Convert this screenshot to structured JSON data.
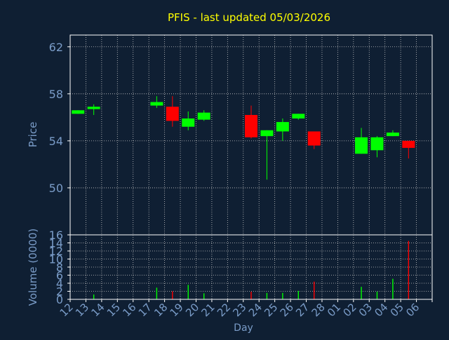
{
  "title": "PFIS - last updated 05/03/2026",
  "colors": {
    "background": "#0f1f33",
    "frame": "#ffffff",
    "grid": "#c8c8c8",
    "title": "#ffff00",
    "axis_text": "#7a9cc8",
    "up": "#00ff00",
    "down": "#ff0000"
  },
  "chart_data": [
    {
      "type": "candlestick",
      "ylabel": "Price",
      "ylim": [
        46,
        63
      ],
      "yticks": [
        50,
        54,
        58,
        62
      ],
      "grid": true,
      "categories": [
        "12",
        "13",
        "14",
        "15",
        "16",
        "17",
        "18",
        "19",
        "20",
        "21",
        "22",
        "23",
        "24",
        "25",
        "26",
        "27",
        "28",
        "01",
        "02",
        "03",
        "04",
        "05",
        "06"
      ],
      "candles": [
        {
          "x": "12",
          "open": 56.3,
          "high": 56.6,
          "low": 56.3,
          "close": 56.6
        },
        {
          "x": "13",
          "open": 56.7,
          "high": 57.1,
          "low": 56.2,
          "close": 56.9
        },
        {
          "x": "17",
          "open": 57.0,
          "high": 57.8,
          "low": 56.8,
          "close": 57.3
        },
        {
          "x": "18",
          "open": 56.9,
          "high": 57.8,
          "low": 55.2,
          "close": 55.7
        },
        {
          "x": "19",
          "open": 55.2,
          "high": 56.5,
          "low": 54.9,
          "close": 55.9
        },
        {
          "x": "20",
          "open": 55.8,
          "high": 56.6,
          "low": 55.7,
          "close": 56.4
        },
        {
          "x": "23",
          "open": 56.2,
          "high": 57.0,
          "low": 54.2,
          "close": 54.3
        },
        {
          "x": "24",
          "open": 54.4,
          "high": 54.9,
          "low": 50.7,
          "close": 54.9
        },
        {
          "x": "25",
          "open": 54.8,
          "high": 55.9,
          "low": 54.0,
          "close": 55.6
        },
        {
          "x": "26",
          "open": 55.9,
          "high": 56.3,
          "low": 55.8,
          "close": 56.3
        },
        {
          "x": "27",
          "open": 54.8,
          "high": 54.8,
          "low": 53.3,
          "close": 53.6
        },
        {
          "x": "02",
          "open": 52.9,
          "high": 55.1,
          "low": 52.9,
          "close": 54.3
        },
        {
          "x": "03",
          "open": 53.2,
          "high": 54.4,
          "low": 52.6,
          "close": 54.3
        },
        {
          "x": "04",
          "open": 54.4,
          "high": 54.9,
          "low": 54.4,
          "close": 54.7
        },
        {
          "x": "05",
          "open": 54.0,
          "high": 54.0,
          "low": 52.5,
          "close": 53.4
        }
      ]
    },
    {
      "type": "bar",
      "xlabel": "Day",
      "ylabel": "Volume (0000)",
      "ylim": [
        0,
        16
      ],
      "yticks": [
        0,
        2,
        4,
        6,
        8,
        10,
        12,
        14,
        16
      ],
      "grid": true,
      "categories": [
        "12",
        "13",
        "14",
        "15",
        "16",
        "17",
        "18",
        "19",
        "20",
        "21",
        "22",
        "23",
        "24",
        "25",
        "26",
        "27",
        "28",
        "01",
        "02",
        "03",
        "04",
        "05",
        "06"
      ],
      "bars": [
        {
          "x": "13",
          "value": 1.2,
          "direction": "up"
        },
        {
          "x": "17",
          "value": 2.9,
          "direction": "up"
        },
        {
          "x": "18",
          "value": 2.0,
          "direction": "down"
        },
        {
          "x": "19",
          "value": 3.6,
          "direction": "up"
        },
        {
          "x": "20",
          "value": 1.5,
          "direction": "up"
        },
        {
          "x": "23",
          "value": 1.9,
          "direction": "down"
        },
        {
          "x": "24",
          "value": 1.6,
          "direction": "up"
        },
        {
          "x": "25",
          "value": 1.6,
          "direction": "up"
        },
        {
          "x": "26",
          "value": 2.1,
          "direction": "up"
        },
        {
          "x": "27",
          "value": 4.4,
          "direction": "down"
        },
        {
          "x": "02",
          "value": 3.1,
          "direction": "up"
        },
        {
          "x": "03",
          "value": 1.9,
          "direction": "up"
        },
        {
          "x": "04",
          "value": 5.1,
          "direction": "up"
        },
        {
          "x": "05",
          "value": 14.5,
          "direction": "down"
        }
      ]
    }
  ]
}
